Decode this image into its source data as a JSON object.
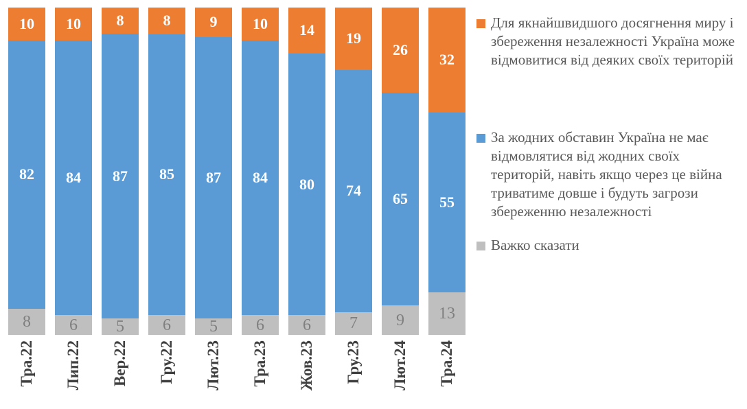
{
  "chart_data": {
    "type": "bar",
    "stacked": true,
    "stacked_100_percent": true,
    "title": "",
    "xlabel": "",
    "ylabel": "",
    "ylim": [
      0,
      100
    ],
    "grid": false,
    "legend_position": "right",
    "categories": [
      "Тра.22",
      "Лип.22",
      "Вер.22",
      "Гру.22",
      "Лют.23",
      "Тра.23",
      "Жов.23",
      "Гру.23",
      "Лют.24",
      "Тра.24"
    ],
    "series": [
      {
        "name": "Для якнайшвидшого досягнення миру і збереження незалежності Україна може відмовитися від деяких своїх територій",
        "color": "#ED7D31",
        "label_color": "#FFFFFF",
        "values": [
          10,
          10,
          8,
          8,
          9,
          10,
          14,
          19,
          26,
          32
        ]
      },
      {
        "name": "За жодних обставин Україна не має відмовлятися від жодних своїх територій, навіть якщо через це війна триватиме довше і будуть загрози збереженню незалежності",
        "color": "#5B9BD5",
        "label_color": "#FFFFFF",
        "values": [
          82,
          84,
          87,
          85,
          87,
          84,
          80,
          74,
          65,
          55
        ]
      },
      {
        "name": "Важко сказати",
        "color": "#BFBFBF",
        "label_color": "#7F7F7F",
        "values": [
          8,
          6,
          5,
          6,
          5,
          6,
          6,
          7,
          9,
          13
        ]
      }
    ],
    "axis_label_color": "#404040",
    "legend_text_color": "#595959",
    "background_color": "#FFFFFF"
  }
}
